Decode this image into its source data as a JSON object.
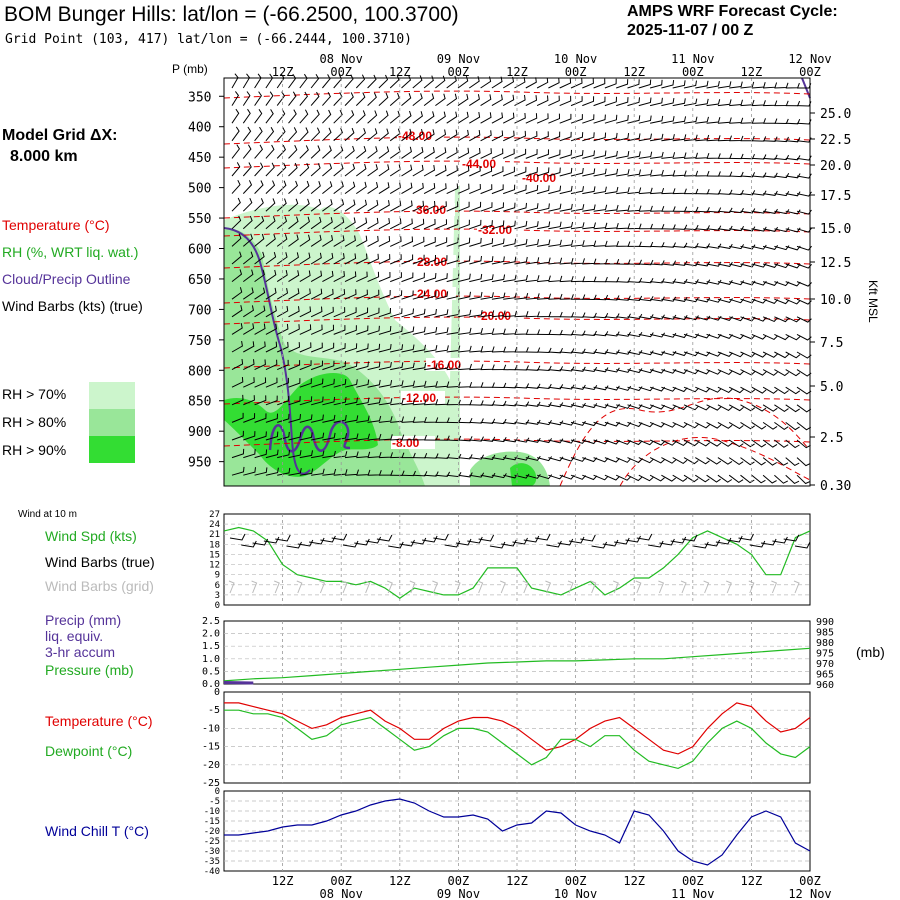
{
  "header": {
    "station_title": "BOM Bunger Hills:  lat/lon = (-66.2500, 100.3700)",
    "grid_point": "Grid Point (103, 417) lat/lon = (-66.2444, 100.3710)",
    "cycle_label": "AMPS WRF Forecast Cycle:",
    "cycle_value": "2025-11-07 / 00  Z"
  },
  "legend": {
    "model_grid_label": "Model Grid ΔX:",
    "model_grid_value": "8.000 km",
    "temperature": "Temperature (°C)",
    "rh": "RH (%, WRT liq. wat.)",
    "cloud": "Cloud/Precip Outline",
    "wind": "Wind Barbs (kts) (true)",
    "rh70": "RH > 70%",
    "rh80": "RH > 80%",
    "rh90": "RH > 90%"
  },
  "colors": {
    "temperature": "#e00000",
    "rh70": "#ccf5cc",
    "rh80": "#99e699",
    "rh90": "#33dd33",
    "cloud": "#553399",
    "green_line": "#22bb22",
    "grid_barbs": "#bbbbbb",
    "windchill": "#000099"
  },
  "time_axis": {
    "top_labels": [
      "12Z",
      "00Z",
      "12Z",
      "00Z",
      "12Z",
      "00Z",
      "12Z",
      "00Z",
      "12Z",
      "00Z"
    ],
    "date_labels": [
      "08 Nov",
      "09 Nov",
      "10 Nov",
      "11 Nov",
      "12 Nov"
    ]
  },
  "cross_section": {
    "p_axis_label": "P (mb)",
    "pressure_levels": [
      "350",
      "400",
      "450",
      "500",
      "550",
      "600",
      "650",
      "700",
      "750",
      "800",
      "850",
      "900",
      "950"
    ],
    "height_axis_label": "Kft MSL",
    "height_ticks": [
      "25.0",
      "22.5",
      "20.0",
      "17.5",
      "15.0",
      "12.5",
      "10.0",
      "7.5",
      "5.0",
      "2.5",
      "0.30"
    ],
    "temperature_labels": [
      "-48.00",
      "-44.00",
      "-40.00",
      "-36.00",
      "-32.00",
      "-28.00",
      "-24.00",
      "-20.00",
      "-16.00",
      "-12.00",
      "-8.00"
    ]
  },
  "panels": {
    "wind_title": "Wind at 10 m",
    "wind_spd": "Wind Spd (kts)",
    "wind_barbs_true": "Wind Barbs (true)",
    "wind_barbs_grid": "Wind Barbs (grid)",
    "precip": "Precip (mm)",
    "precip_sub1": "liq. equiv.",
    "precip_sub2": "3-hr accum",
    "pressure": "Pressure (mb)",
    "pressure_unit": "(mb)",
    "temperature": "Temperature (°C)",
    "dewpoint": "Dewpoint (°C)",
    "windchill": "Wind Chill T (°C)"
  },
  "chart_data": [
    {
      "type": "line",
      "name": "wind_speed_10m",
      "x_hours": [
        0,
        3,
        6,
        9,
        12,
        15,
        18,
        21,
        24,
        27,
        30,
        33,
        36,
        39,
        42,
        45,
        48,
        51,
        54,
        57,
        60,
        63,
        66,
        69,
        72,
        75,
        78,
        81,
        84,
        87,
        90,
        93,
        96,
        99,
        102,
        105,
        108,
        111,
        114,
        117,
        120
      ],
      "series": [
        {
          "name": "Wind Spd (kts)",
          "values": [
            22,
            23,
            22,
            19,
            12,
            9,
            8,
            7,
            7,
            6,
            7,
            5,
            2,
            5,
            4,
            3,
            3,
            5,
            11,
            11,
            11,
            5,
            4,
            3,
            5,
            7,
            3,
            5,
            8,
            8,
            11,
            15,
            20,
            22,
            20,
            18,
            15,
            9,
            9,
            20,
            22
          ]
        }
      ],
      "ylim": [
        0,
        27
      ],
      "ticks": [
        "27",
        "24",
        "21",
        "18",
        "15",
        "12",
        "9",
        "6",
        "3",
        "0"
      ]
    },
    {
      "type": "line",
      "name": "precip_pressure",
      "x_hours": [
        0,
        6,
        12,
        18,
        24,
        30,
        36,
        42,
        48,
        54,
        60,
        66,
        72,
        78,
        84,
        90,
        96,
        102,
        108,
        114,
        120
      ],
      "series": [
        {
          "name": "Pressure (mb)",
          "values": [
            961.5,
            962.5,
            963,
            964,
            965,
            966,
            967,
            968,
            969,
            970,
            970.5,
            971,
            971,
            971.5,
            972,
            972,
            973,
            974,
            975,
            976,
            977
          ],
          "ylim": [
            960,
            990
          ]
        },
        {
          "name": "Precip (mm)",
          "values": [
            0.05,
            0,
            0,
            0,
            0,
            0,
            0,
            0,
            0,
            0,
            0,
            0,
            0,
            0,
            0,
            0,
            0,
            0,
            0,
            0,
            0
          ],
          "ylim": [
            0,
            2.5
          ]
        }
      ],
      "left_ticks": [
        "2.5",
        "2.0",
        "1.5",
        "1.0",
        "0.5",
        "0.0"
      ],
      "right_ticks": [
        "990",
        "985",
        "980",
        "975",
        "970",
        "965",
        "960"
      ]
    },
    {
      "type": "line",
      "name": "temperature_dewpoint",
      "x_hours": [
        0,
        3,
        6,
        9,
        12,
        15,
        18,
        21,
        24,
        27,
        30,
        33,
        36,
        39,
        42,
        45,
        48,
        51,
        54,
        57,
        60,
        63,
        66,
        69,
        72,
        75,
        78,
        81,
        84,
        87,
        90,
        93,
        96,
        99,
        102,
        105,
        108,
        111,
        114,
        117,
        120
      ],
      "series": [
        {
          "name": "Temperature (°C)",
          "values": [
            -3,
            -3,
            -4,
            -5,
            -6,
            -8,
            -10,
            -9,
            -7,
            -6,
            -5,
            -8,
            -10,
            -13,
            -13,
            -10,
            -8,
            -7,
            -7,
            -8,
            -10,
            -13,
            -16,
            -15,
            -13,
            -10,
            -8,
            -7,
            -10,
            -13,
            -16,
            -17,
            -15,
            -10,
            -6,
            -3,
            -4,
            -8,
            -11,
            -10,
            -7
          ]
        },
        {
          "name": "Dewpoint (°C)",
          "values": [
            -5,
            -5,
            -6,
            -6,
            -7,
            -10,
            -13,
            -12,
            -9,
            -8,
            -7,
            -10,
            -13,
            -16,
            -15,
            -12,
            -10,
            -10,
            -11,
            -14,
            -17,
            -20,
            -18,
            -13,
            -13,
            -15,
            -12,
            -12,
            -16,
            -19,
            -20,
            -21,
            -19,
            -14,
            -10,
            -8,
            -10,
            -14,
            -17,
            -18,
            -15
          ]
        }
      ],
      "ylim": [
        -25,
        0
      ],
      "ticks": [
        "0",
        "-5",
        "-10",
        "-15",
        "-20",
        "-25"
      ]
    },
    {
      "type": "line",
      "name": "wind_chill",
      "x_hours": [
        0,
        3,
        6,
        9,
        12,
        15,
        18,
        21,
        24,
        27,
        30,
        33,
        36,
        39,
        42,
        45,
        48,
        51,
        54,
        57,
        60,
        63,
        66,
        69,
        72,
        75,
        78,
        81,
        84,
        87,
        90,
        93,
        96,
        99,
        102,
        105,
        108,
        111,
        114,
        117,
        120
      ],
      "series": [
        {
          "name": "Wind Chill T (°C)",
          "values": [
            -22,
            -22,
            -21,
            -20,
            -18,
            -17,
            -17,
            -15,
            -12,
            -10,
            -7,
            -5,
            -4,
            -6,
            -10,
            -13,
            -13,
            -12,
            -14,
            -20,
            -17,
            -16,
            -10,
            -11,
            -17,
            -20,
            -22,
            -26,
            -10,
            -12,
            -20,
            -30,
            -35,
            -37,
            -32,
            -22,
            -13,
            -10,
            -13,
            -26,
            -30
          ]
        }
      ],
      "ylim": [
        -40,
        0
      ],
      "ticks": [
        "0",
        "-5",
        "-10",
        "-15",
        "-20",
        "-25",
        "-30",
        "-35",
        "-40"
      ]
    }
  ]
}
